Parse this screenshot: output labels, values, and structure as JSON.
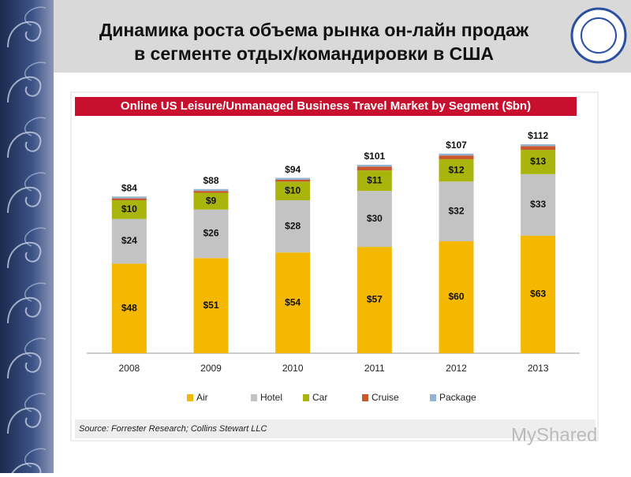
{
  "slide": {
    "title_lines": [
      "Динамика роста объема рынка он-лайн продаж",
      "в сегменте отдых/командировки в США"
    ],
    "watermark": "MyShared"
  },
  "chart_data": {
    "type": "stacked-bar",
    "title": "Online US Leisure/Unmanaged Business Travel Market by Segment ($bn)",
    "categories": [
      "2008",
      "2009",
      "2010",
      "2011",
      "2012",
      "2013"
    ],
    "series": [
      {
        "name": "Air",
        "color": "#f4b800",
        "values": [
          48,
          51,
          54,
          57,
          60,
          63
        ],
        "value_labels": [
          "$48",
          "$51",
          "$54",
          "$57",
          "$60",
          "$63"
        ]
      },
      {
        "name": "Hotel",
        "color": "#c3c3c3",
        "values": [
          24,
          26,
          28,
          30,
          32,
          33
        ],
        "value_labels": [
          "$24",
          "$26",
          "$28",
          "$30",
          "$32",
          "$33"
        ]
      },
      {
        "name": "Car",
        "color": "#a9b50c",
        "values": [
          10,
          9,
          10,
          11,
          12,
          13
        ],
        "value_labels": [
          "$10",
          "$9",
          "$10",
          "$11",
          "$12",
          "$13"
        ]
      },
      {
        "name": "Cruise",
        "color": "#c9562c",
        "values": [
          1,
          1,
          1,
          2,
          2,
          2
        ]
      },
      {
        "name": "Package",
        "color": "#93b3d3",
        "values": [
          1,
          1,
          1,
          1,
          1,
          1
        ]
      }
    ],
    "total_labels": [
      "$84",
      "$88",
      "$94",
      "$101",
      "$107",
      "$112"
    ],
    "source": "Source: Forrester Research; Collins Stewart LLC"
  }
}
